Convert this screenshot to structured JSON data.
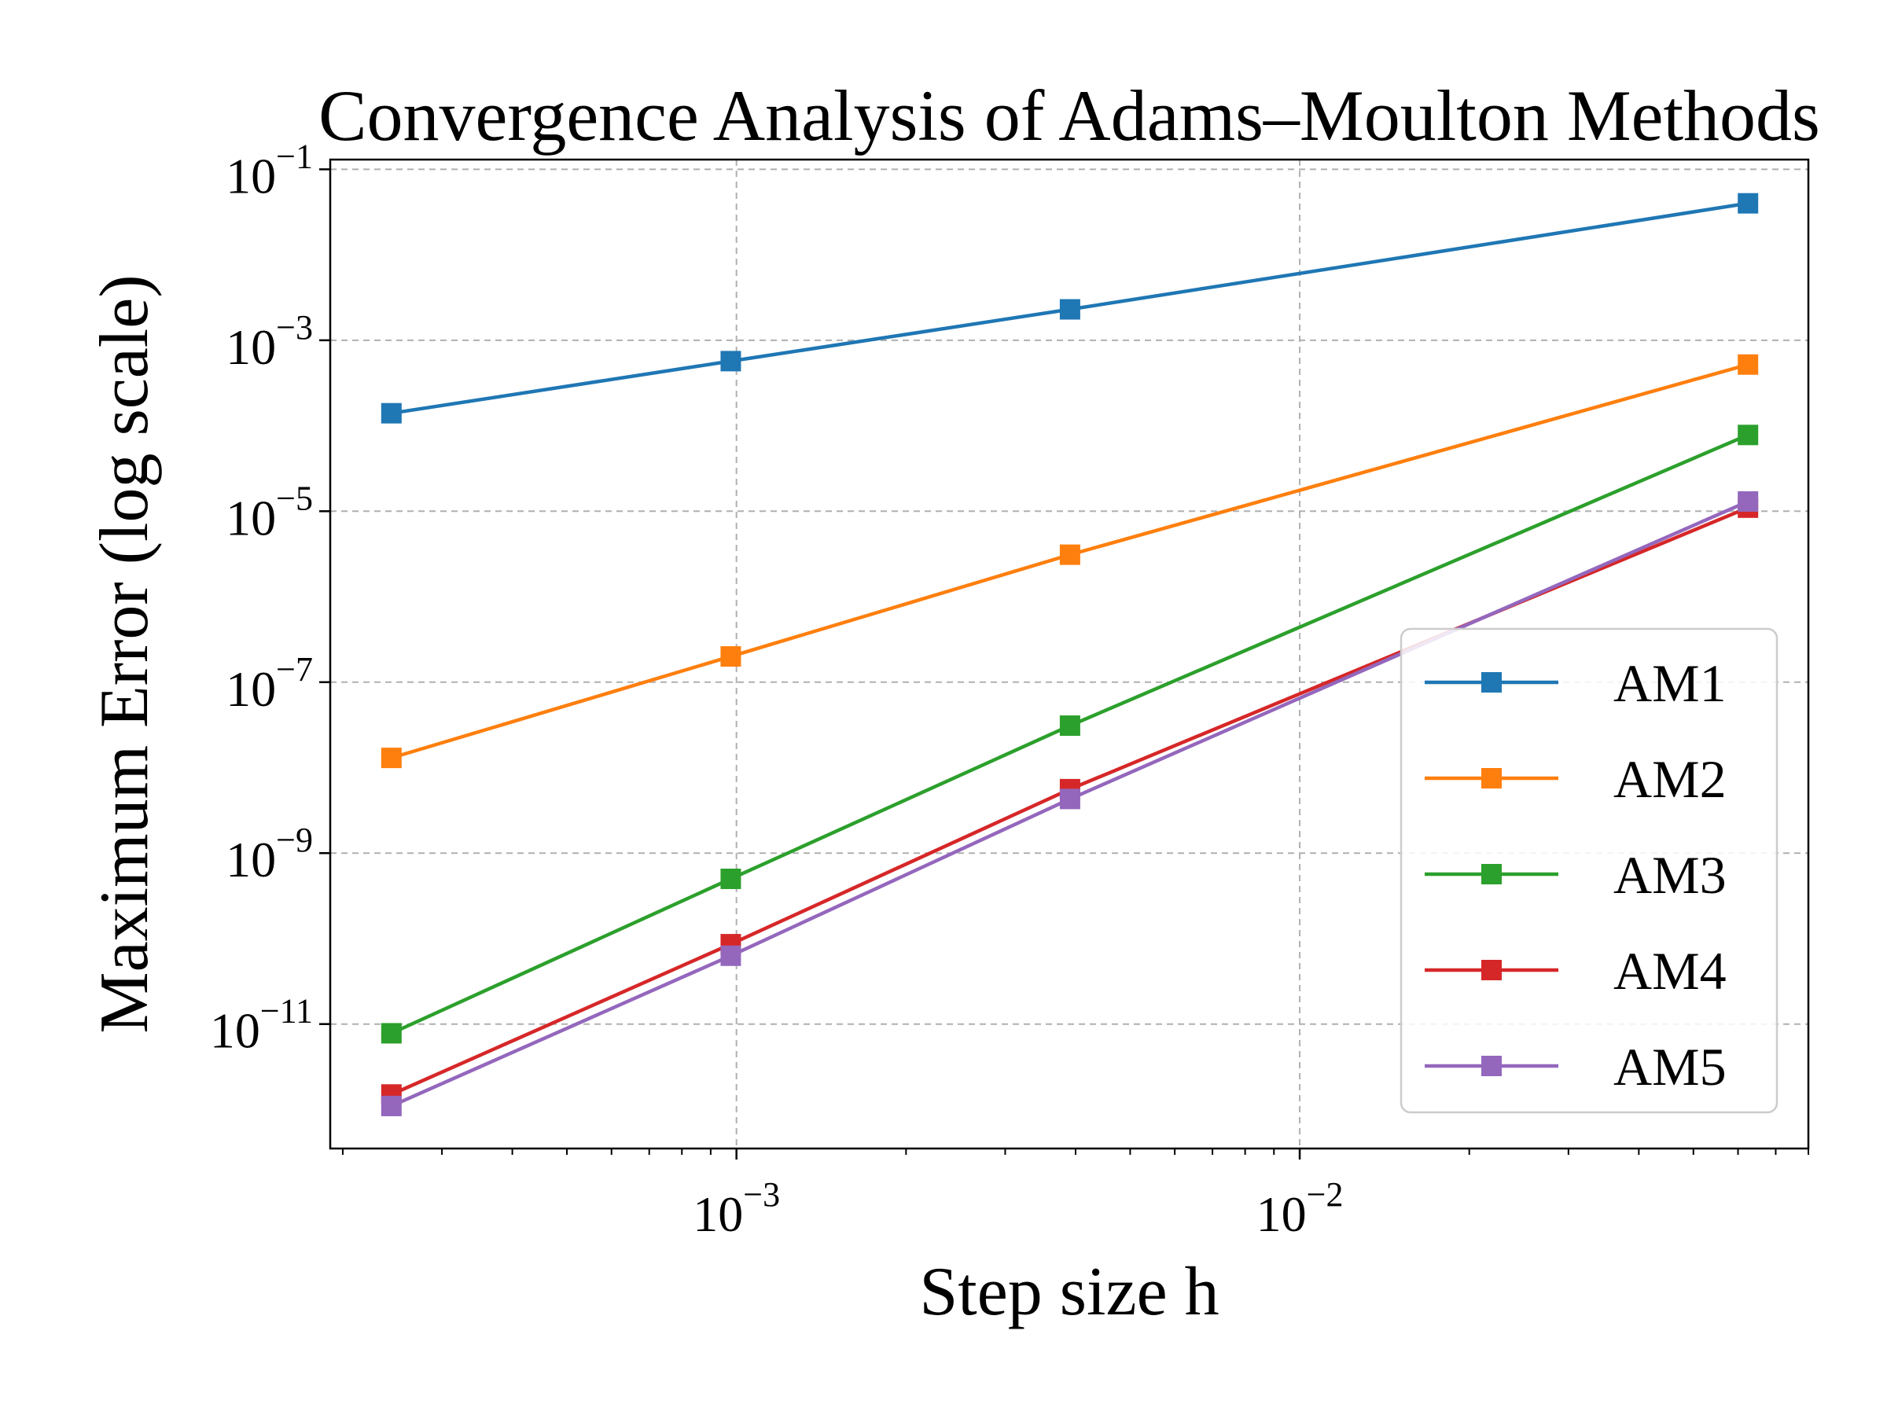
{
  "chart_data": {
    "type": "line",
    "title": "Convergence Analysis of Adams–Moulton Methods",
    "xlabel": "Step size h",
    "ylabel": "Maximum Error (log scale)",
    "xscale": "log",
    "yscale": "log",
    "xlim": [
      0.00019,
      0.08
    ],
    "ylim": [
      3.5e-13,
      0.13
    ],
    "grid": true,
    "legend_position": "lower-right",
    "x": [
      0.000244,
      0.000977,
      0.00391,
      0.0625
    ],
    "x_ticks": [
      {
        "value": 0.001,
        "base": "10",
        "exp": "−3"
      },
      {
        "value": 0.01,
        "base": "10",
        "exp": "−2"
      }
    ],
    "y_ticks": [
      {
        "value": 0.1,
        "base": "10",
        "exp": "−1"
      },
      {
        "value": 0.001,
        "base": "10",
        "exp": "−3"
      },
      {
        "value": 1e-05,
        "base": "10",
        "exp": "−5"
      },
      {
        "value": 1e-07,
        "base": "10",
        "exp": "−7"
      },
      {
        "value": 1e-09,
        "base": "10",
        "exp": "−9"
      },
      {
        "value": 1e-11,
        "base": "10",
        "exp": "−11"
      }
    ],
    "series": [
      {
        "name": "AM1",
        "color": "#1f77b4",
        "values": [
          0.00014,
          0.00057,
          0.0023,
          0.04
        ]
      },
      {
        "name": "AM2",
        "color": "#ff7f0e",
        "values": [
          1.3e-08,
          2e-07,
          3.1e-06,
          0.00052
        ]
      },
      {
        "name": "AM3",
        "color": "#2ca02c",
        "values": [
          7.8e-12,
          5e-10,
          3.1e-08,
          7.8e-05
        ]
      },
      {
        "name": "AM4",
        "color": "#d62728",
        "values": [
          1.5e-12,
          8.6e-11,
          5.6e-09,
          1.1e-05
        ]
      },
      {
        "name": "AM5",
        "color": "#9467bd",
        "values": [
          1.1e-12,
          6.3e-11,
          4.3e-09,
          1.3e-05
        ]
      }
    ]
  }
}
